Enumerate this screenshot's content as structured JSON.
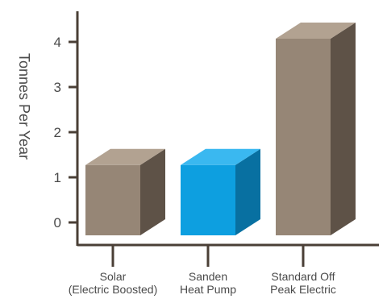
{
  "chart_data": {
    "type": "bar",
    "style": "3d",
    "categories": [
      [
        "Solar",
        "(Electric Boosted)"
      ],
      [
        "Sanden",
        "Heat Pump"
      ],
      [
        "Standard Off",
        "Peak Electric"
      ]
    ],
    "values": [
      1.2,
      1.2,
      4.0
    ],
    "ylabel": "Tonnes Per Year",
    "yticks": [
      0,
      1,
      2,
      3,
      4
    ],
    "ylim": [
      0,
      4
    ],
    "grid": false,
    "colors": {
      "axis": "#4a3f36",
      "bars": [
        {
          "front": "#968676",
          "top": "#b2a291",
          "side": "#5e5247"
        },
        {
          "front": "#0d9fe0",
          "top": "#3ab8f0",
          "side": "#0870a1"
        },
        {
          "front": "#968676",
          "top": "#b2a291",
          "side": "#5e5247"
        }
      ]
    }
  }
}
